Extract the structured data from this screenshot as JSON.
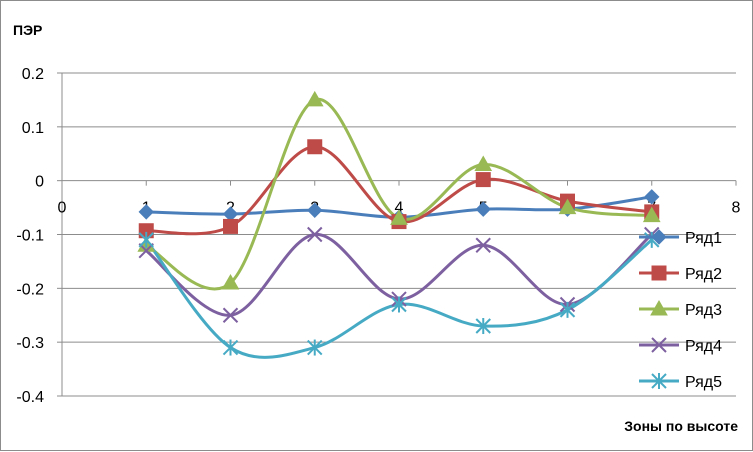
{
  "chart_data": {
    "type": "line",
    "ylabel": "ПЭР",
    "xlabel": "Зоны по высоте",
    "xlim": [
      0,
      8
    ],
    "ylim": [
      -0.4,
      0.2
    ],
    "x_ticks": [
      0,
      1,
      2,
      3,
      4,
      5,
      6,
      7,
      8
    ],
    "y_ticks": [
      0.2,
      0.1,
      0,
      -0.1,
      -0.2,
      -0.3,
      -0.4
    ],
    "y_tick_labels": [
      "0.2",
      "0.1",
      "0",
      "-0.1",
      "-0.2",
      "-0.3",
      "-0.4"
    ],
    "grid": "horizontal",
    "smooth": true,
    "legend": "right",
    "x": [
      1,
      2,
      3,
      4,
      5,
      6,
      7
    ],
    "series": [
      {
        "name": "Ряд1",
        "color": "#4A7EBB",
        "marker": "diamond",
        "values": [
          -0.058,
          -0.062,
          -0.055,
          -0.068,
          -0.053,
          -0.053,
          -0.03
        ]
      },
      {
        "name": "Ряд2",
        "color": "#BE4B48",
        "marker": "square",
        "values": [
          -0.093,
          -0.085,
          0.063,
          -0.076,
          0.002,
          -0.038,
          -0.058
        ]
      },
      {
        "name": "Ряд3",
        "color": "#98B954",
        "marker": "triangle",
        "values": [
          -0.12,
          -0.19,
          0.15,
          -0.07,
          0.03,
          -0.05,
          -0.065
        ]
      },
      {
        "name": "Ряд4",
        "color": "#7D60A0",
        "marker": "x",
        "values": [
          -0.13,
          -0.25,
          -0.1,
          -0.22,
          -0.12,
          -0.23,
          -0.1
        ]
      },
      {
        "name": "Ряд5",
        "color": "#46AAC5",
        "marker": "star",
        "values": [
          -0.11,
          -0.31,
          -0.31,
          -0.23,
          -0.27,
          -0.24,
          -0.11
        ]
      }
    ]
  }
}
